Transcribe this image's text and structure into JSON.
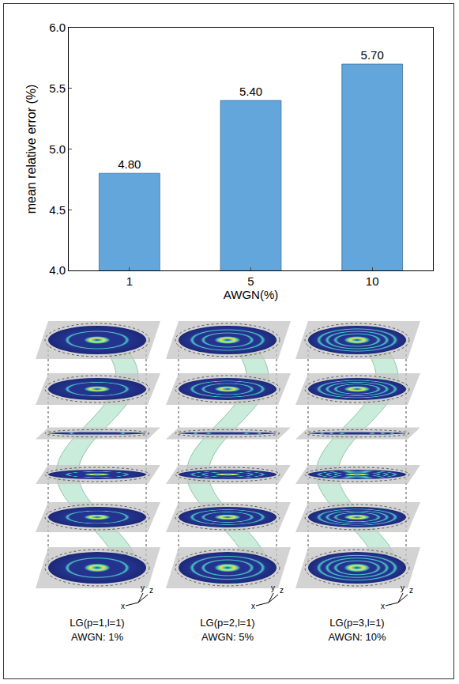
{
  "chart_data": {
    "type": "bar",
    "categories": [
      "1",
      "5",
      "10"
    ],
    "values": [
      4.8,
      5.4,
      5.7
    ],
    "value_labels": [
      "4.80",
      "5.40",
      "5.70"
    ],
    "data_labels": true,
    "color": "#62a6dc",
    "x_label": "AWGN(%)",
    "y_label": "mean relative error (%)",
    "ylim": [
      4.0,
      6.0
    ],
    "yticks": [
      {
        "value": 4,
        "label": "4.0"
      },
      4.5,
      {
        "value": 5,
        "label": "5.0"
      },
      5.5,
      {
        "value": 6,
        "label": "6.0"
      }
    ],
    "grid": false
  },
  "diagram": {
    "panels": [
      {
        "beam": "LG(p=1,l=1)",
        "noise": "AWGN: 1%"
      },
      {
        "beam": "LG(p=2,l=1)",
        "noise": "AWGN: 5%"
      },
      {
        "beam": "LG(p=3,l=1)",
        "noise": "AWGN: 10%"
      }
    ],
    "axes": [
      "x",
      "y",
      "z"
    ]
  }
}
